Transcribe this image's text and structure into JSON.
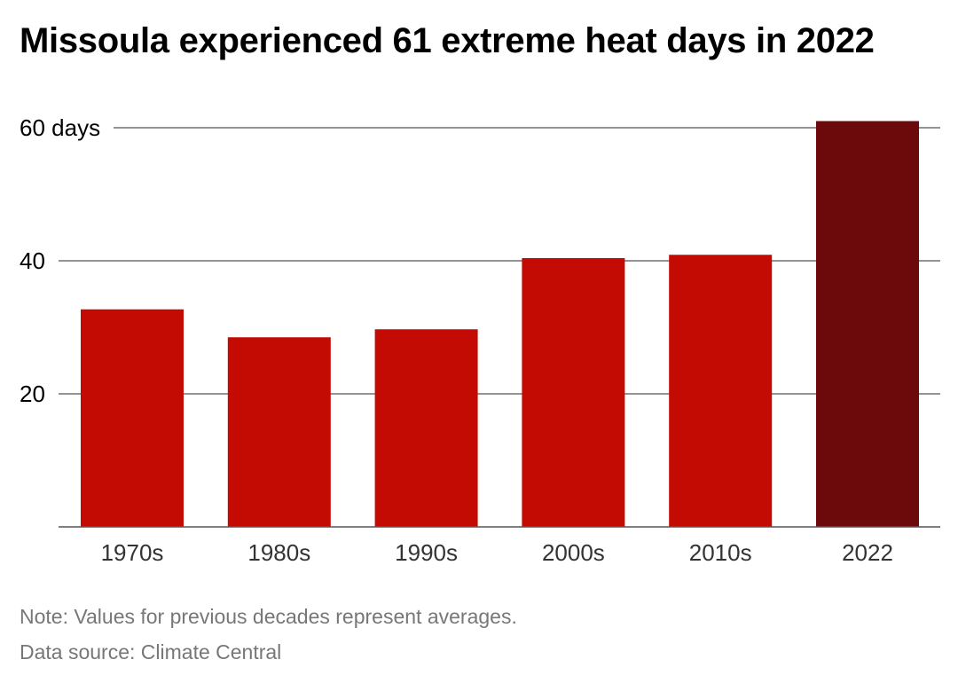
{
  "title": "Missoula experienced 61 extreme heat days in 2022",
  "note": "Note: Values for previous decades represent averages.",
  "source": "Data source: Climate Central",
  "colors": {
    "bar": "#c30a03",
    "highlight": "#6b090b",
    "grid": "#555555",
    "text": "#000000",
    "label": "#333333",
    "footnote": "#777777"
  },
  "chart_data": {
    "type": "bar",
    "categories": [
      "1970s",
      "1980s",
      "1990s",
      "2000s",
      "2010s",
      "2022"
    ],
    "values": [
      32.7,
      28.5,
      29.7,
      40.4,
      40.9,
      61
    ],
    "highlight_category": "2022",
    "yticks": [
      {
        "value": 20,
        "label": "20"
      },
      {
        "value": 40,
        "label": "40"
      },
      {
        "value": 60,
        "label": "60 days"
      }
    ],
    "ylim": [
      0,
      62
    ],
    "xlabel": "",
    "ylabel": "",
    "grid": true,
    "legend": "none"
  }
}
